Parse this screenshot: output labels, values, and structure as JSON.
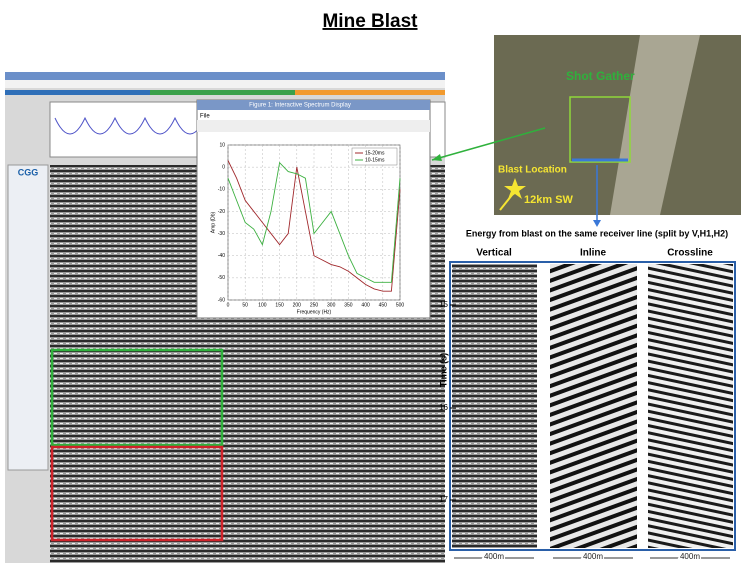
{
  "title": "Mine Blast",
  "map": {
    "shot_label": "Shot Gather",
    "blast_label": "Blast Location",
    "distance_label": "12km SW"
  },
  "caption": "Energy from blast on the same receiver line (split by V,H1,H2)",
  "panels": {
    "titles": [
      "Vertical",
      "Inline",
      "Crossline"
    ],
    "y_label": "Time (s)",
    "yticks": [
      15,
      16,
      17
    ],
    "scale_labels": [
      "400m",
      "400m",
      "400m"
    ]
  },
  "app": {
    "logo": "CGG"
  },
  "spectrum_window": {
    "title": "Figure 1: Interactive Spectrum Display",
    "menu": "File"
  },
  "chart_data": {
    "type": "line",
    "x_label": "Frequency (Hz)",
    "y_label": "Amp (Db)",
    "x": [
      0,
      25,
      50,
      75,
      100,
      125,
      150,
      175,
      200,
      225,
      250,
      275,
      300,
      325,
      350,
      375,
      400,
      425,
      450,
      475,
      500
    ],
    "series": [
      {
        "name": "15-20ms",
        "color": "#a0282c",
        "values": [
          3,
          -5,
          -15,
          -20,
          -25,
          -30,
          -35,
          -30,
          0,
          -20,
          -40,
          -42,
          -44,
          -45,
          -47,
          -50,
          -53,
          -55,
          -56,
          -56,
          -10
        ]
      },
      {
        "name": "10-15ms",
        "color": "#3cb040",
        "values": [
          -5,
          -15,
          -25,
          -28,
          -35,
          -20,
          2,
          -2,
          -3,
          -5,
          -30,
          -25,
          -20,
          -30,
          -40,
          -48,
          -50,
          -52,
          -52,
          -52,
          -5
        ]
      }
    ],
    "xlim": [
      0,
      500
    ],
    "ylim": [
      -60,
      10
    ],
    "xticks": [
      0,
      50,
      100,
      150,
      200,
      250,
      300,
      350,
      400,
      450,
      500
    ],
    "yticks": [
      10,
      0,
      -10,
      -20,
      -30,
      -40,
      -50,
      -60
    ],
    "grid": true
  }
}
